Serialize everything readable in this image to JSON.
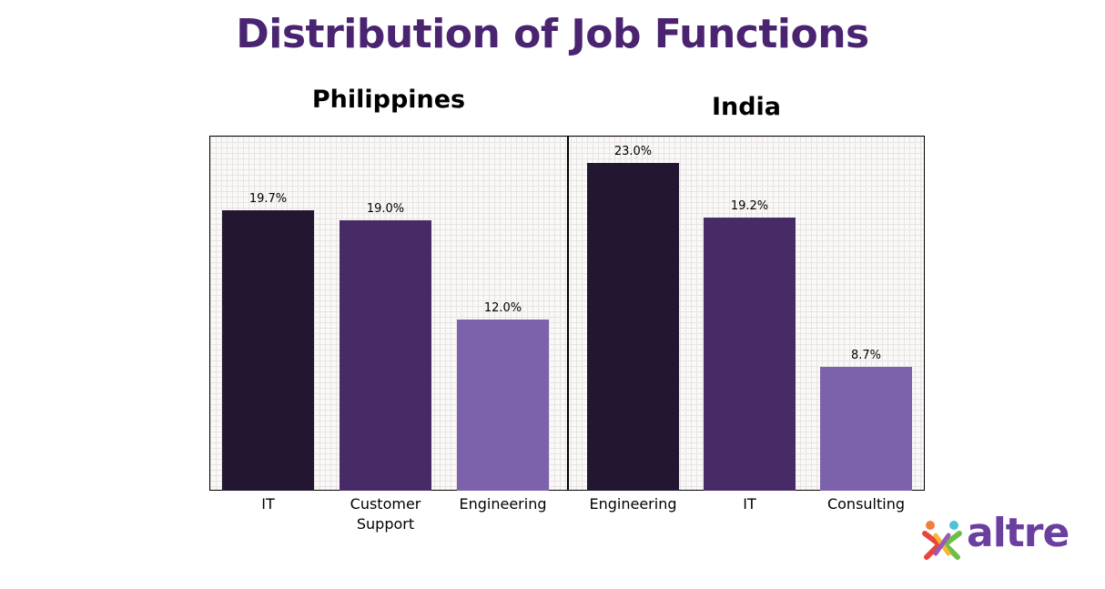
{
  "title": "Distribution of Job Functions",
  "brand": {
    "name": "altre"
  },
  "colors": {
    "title": "#4a2470",
    "bar_dark": "#231631",
    "bar_mid": "#462b67",
    "bar_light": "#7b62ab"
  },
  "chart_data": [
    {
      "type": "bar",
      "title": "Philippines",
      "categories": [
        "IT",
        "Customer Support",
        "Engineering"
      ],
      "values": [
        19.7,
        19.0,
        12.0
      ],
      "value_labels": [
        "19.7%",
        "19.0%",
        "12.0%"
      ],
      "ylim": [
        0,
        25
      ],
      "grid": true
    },
    {
      "type": "bar",
      "title": "India",
      "categories": [
        "Engineering",
        "IT",
        "Consulting"
      ],
      "values": [
        23.0,
        19.2,
        8.7
      ],
      "value_labels": [
        "23.0%",
        "19.2%",
        "8.7%"
      ],
      "ylim": [
        0,
        25
      ],
      "grid": true
    }
  ]
}
